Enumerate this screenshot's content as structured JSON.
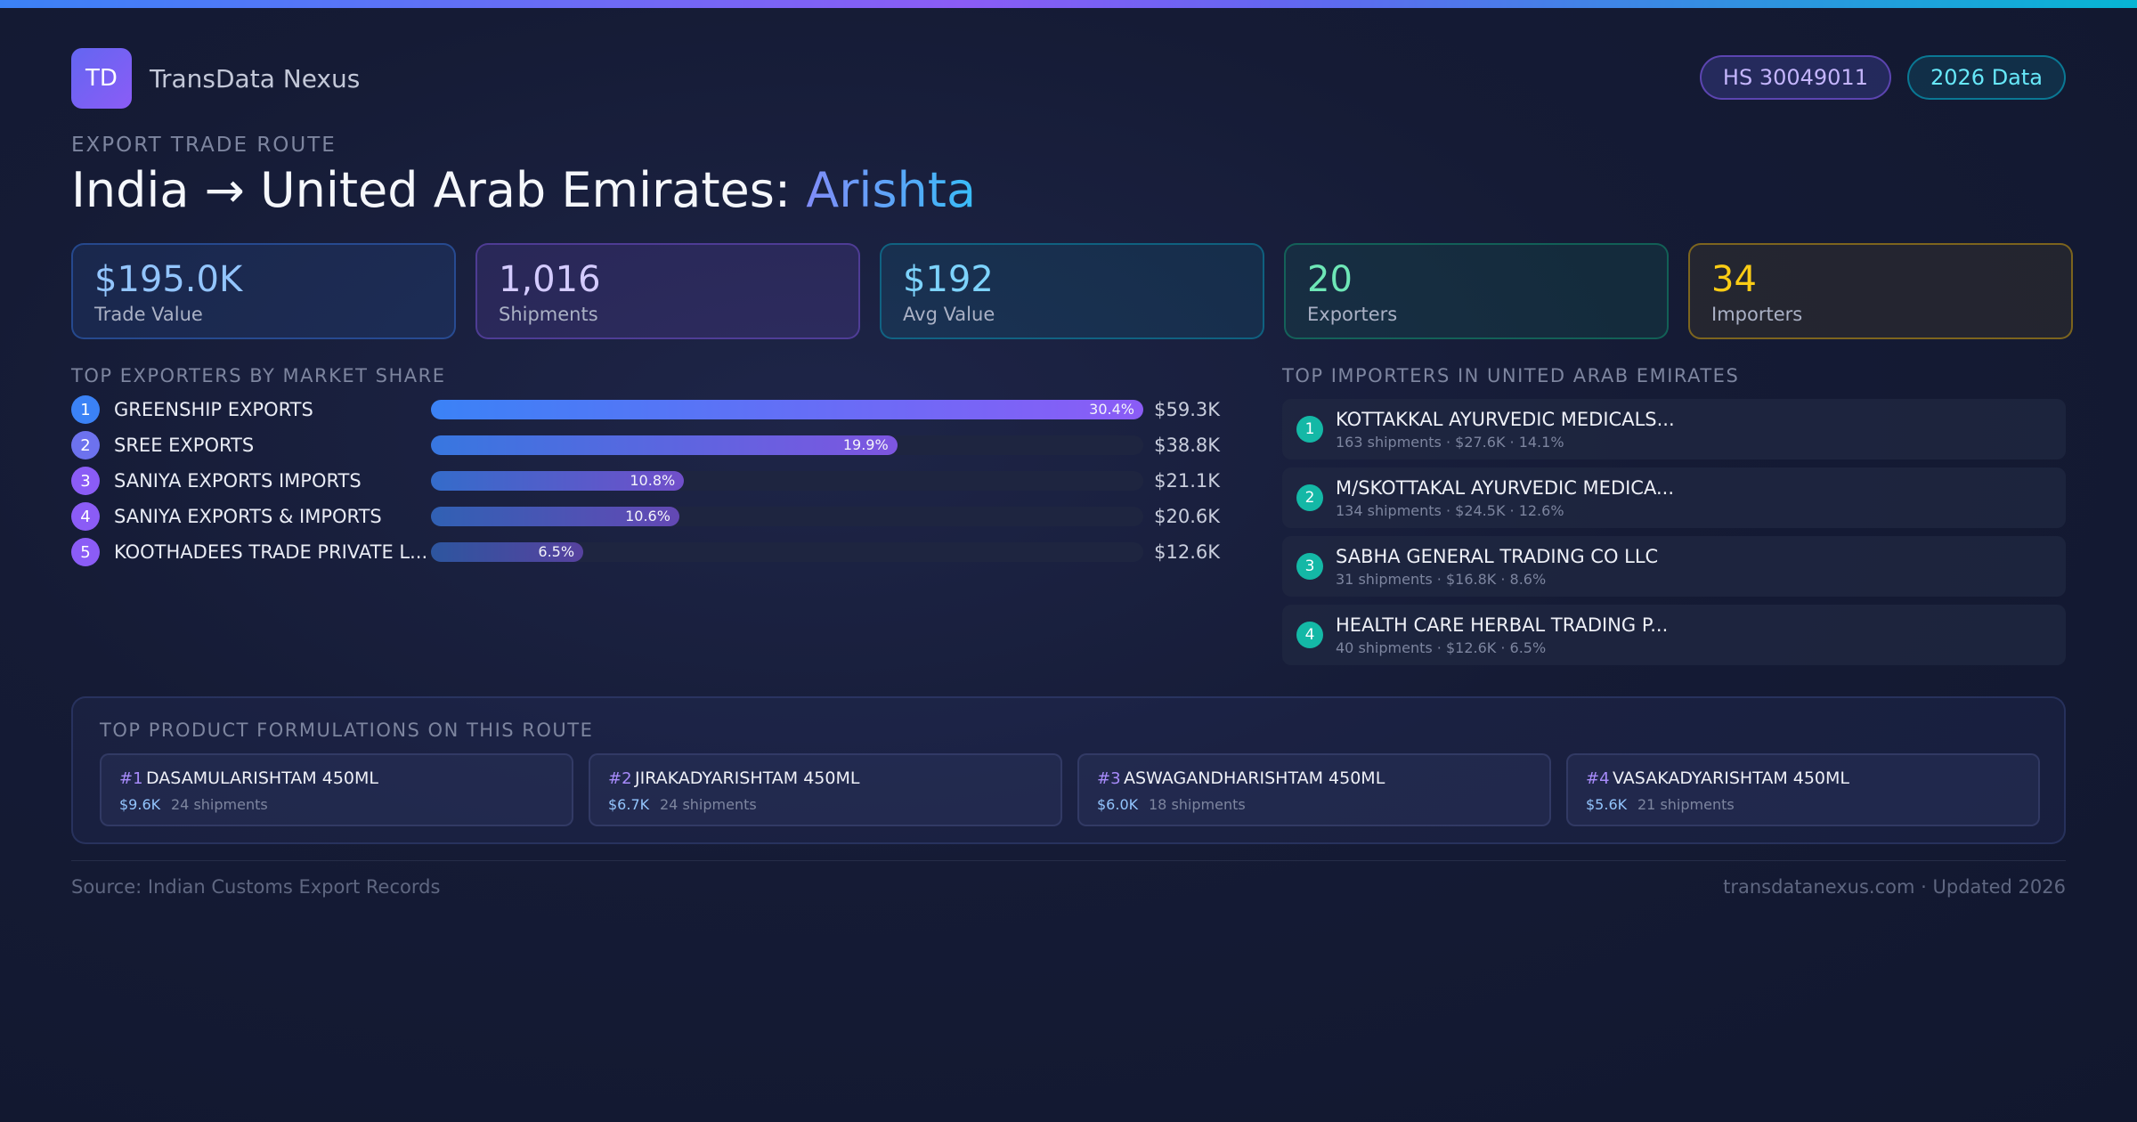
{
  "brand": {
    "logo_text": "TD",
    "name": "TransData Nexus"
  },
  "badges": {
    "hs": "HS 30049011",
    "year": "2026 Data"
  },
  "header": {
    "eyebrow": "EXPORT TRADE ROUTE",
    "title_prefix": "India → United Arab Emirates: ",
    "title_highlight": "Arishta"
  },
  "stats": [
    {
      "value": "$195.0K",
      "label": "Trade Value"
    },
    {
      "value": "1,016",
      "label": "Shipments"
    },
    {
      "value": "$192",
      "label": "Avg Value"
    },
    {
      "value": "20",
      "label": "Exporters"
    },
    {
      "value": "34",
      "label": "Importers"
    }
  ],
  "exporters": {
    "title": "TOP EXPORTERS BY MARKET SHARE",
    "items": [
      {
        "rank": "1",
        "name": "GREENSHIP EXPORTS",
        "share_label": "30.4%",
        "share": 30.4,
        "value": "$59.3K",
        "rank_color": "#3b82f6"
      },
      {
        "rank": "2",
        "name": "SREE EXPORTS",
        "share_label": "19.9%",
        "share": 19.9,
        "value": "$38.8K",
        "rank_color": "#6d72ee"
      },
      {
        "rank": "3",
        "name": "SANIYA EXPORTS IMPORTS",
        "share_label": "10.8%",
        "share": 10.8,
        "value": "$21.1K",
        "rank_color": "#8b5cf6"
      },
      {
        "rank": "4",
        "name": "SANIYA EXPORTS & IMPORTS",
        "share_label": "10.6%",
        "share": 10.6,
        "value": "$20.6K",
        "rank_color": "#8b5cf6"
      },
      {
        "rank": "5",
        "name": "KOOTHADEES TRADE PRIVATE L...",
        "share_label": "6.5%",
        "share": 6.5,
        "value": "$12.6K",
        "rank_color": "#8b5cf6"
      }
    ]
  },
  "importers": {
    "title": "TOP IMPORTERS IN UNITED ARAB EMIRATES",
    "items": [
      {
        "rank": "1",
        "name": "KOTTAKKAL AYURVEDIC MEDICALS...",
        "meta": "163 shipments · $27.6K · 14.1%"
      },
      {
        "rank": "2",
        "name": "M/SKOTTAKAL AYURVEDIC MEDICA...",
        "meta": "134 shipments · $24.5K · 12.6%"
      },
      {
        "rank": "3",
        "name": "SABHA GENERAL TRADING CO LLC",
        "meta": "31 shipments · $16.8K · 8.6%"
      },
      {
        "rank": "4",
        "name": "HEALTH CARE HERBAL TRADING P...",
        "meta": "40 shipments · $12.6K · 6.5%"
      }
    ]
  },
  "products": {
    "title": "TOP PRODUCT FORMULATIONS ON THIS ROUTE",
    "items": [
      {
        "rank": "#1",
        "name": "DASAMULARISHTAM 450ML",
        "value": "$9.6K",
        "shipments": "24 shipments"
      },
      {
        "rank": "#2",
        "name": "JIRAKADYARISHTAM 450ML",
        "value": "$6.7K",
        "shipments": "24 shipments"
      },
      {
        "rank": "#3",
        "name": "ASWAGANDHARISHTAM 450ML",
        "value": "$6.0K",
        "shipments": "18 shipments"
      },
      {
        "rank": "#4",
        "name": "VASAKADYARISHTAM 450ML",
        "value": "$5.6K",
        "shipments": "21 shipments"
      }
    ]
  },
  "footer": {
    "source": "Source: Indian Customs Export Records",
    "updated": "transdatanexus.com · Updated 2026"
  }
}
